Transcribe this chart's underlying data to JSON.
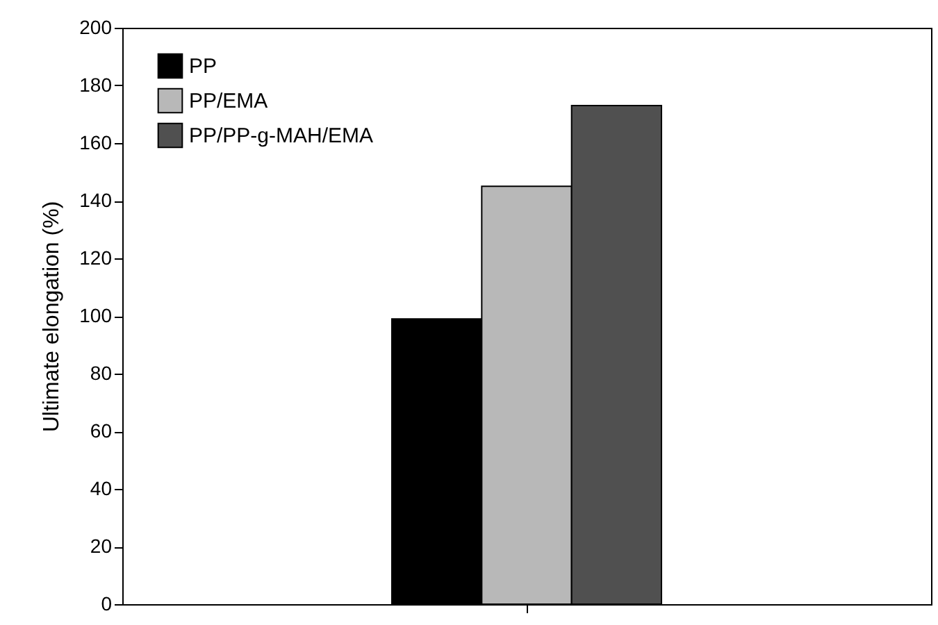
{
  "chart_data": {
    "type": "bar",
    "ylabel": "Ultimate elongation (%)",
    "categories": [
      null
    ],
    "series": [
      {
        "name": "PP",
        "color": "#000000",
        "values": [
          99
        ]
      },
      {
        "name": "PP/EMA",
        "color": "#b8b8b8",
        "values": [
          145
        ]
      },
      {
        "name": "PP/PP-g-MAH/EMA",
        "color": "#505050",
        "values": [
          173
        ]
      }
    ],
    "ylim": [
      0,
      200
    ],
    "yticks": [
      0,
      20,
      40,
      60,
      80,
      100,
      120,
      140,
      160,
      180,
      200
    ],
    "legend": "top left",
    "tick_labels": "y"
  }
}
